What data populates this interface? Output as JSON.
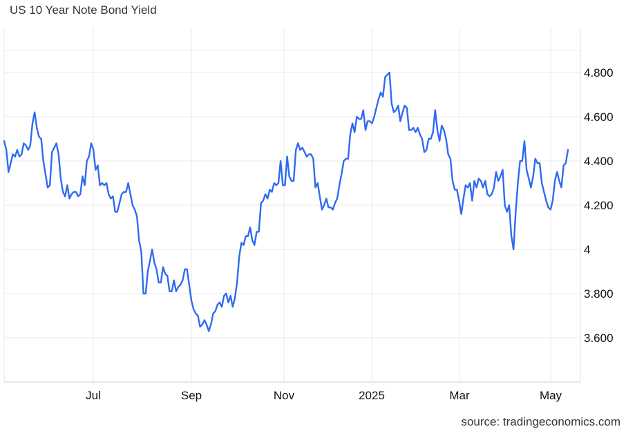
{
  "title": "US 10 Year Note Bond Yield",
  "source": "source: tradingeconomics.com",
  "colors": {
    "line": "#2f6bef",
    "grid": "#e8e8e8",
    "axis": "#cccccc"
  },
  "chart_data": {
    "type": "line",
    "title": "US 10 Year Note Bond Yield",
    "xlabel": "",
    "ylabel": "",
    "ylim": [
      3.42,
      4.98
    ],
    "grid": true,
    "x_ticks": [
      "Jul",
      "Sep",
      "Nov",
      "2025",
      "Mar",
      "May"
    ],
    "y_ticks": [
      {
        "value": 4.8,
        "label": "4.800"
      },
      {
        "value": 4.6,
        "label": "4.600"
      },
      {
        "value": 4.4,
        "label": "4.400"
      },
      {
        "value": 4.2,
        "label": "4.200"
      },
      {
        "value": 4.0,
        "label": "4"
      },
      {
        "value": 3.8,
        "label": "3.800"
      },
      {
        "value": 3.6,
        "label": "3.600"
      }
    ],
    "x_start": "2024-05-09",
    "x_end": "2025-05-09",
    "series": [
      {
        "values": [
          4.49,
          4.45,
          4.35,
          4.39,
          4.43,
          4.42,
          4.45,
          4.42,
          4.43,
          4.48,
          4.47,
          4.45,
          4.47,
          4.57,
          4.62,
          4.55,
          4.51,
          4.5,
          4.4,
          4.34,
          4.28,
          4.29,
          4.44,
          4.46,
          4.48,
          4.43,
          4.32,
          4.26,
          4.24,
          4.29,
          4.23,
          4.25,
          4.26,
          4.26,
          4.24,
          4.25,
          4.33,
          4.29,
          4.4,
          4.42,
          4.48,
          4.45,
          4.36,
          4.38,
          4.29,
          4.3,
          4.29,
          4.3,
          4.25,
          4.23,
          4.24,
          4.17,
          4.17,
          4.21,
          4.25,
          4.26,
          4.26,
          4.3,
          4.25,
          4.2,
          4.18,
          4.15,
          4.04,
          3.99,
          3.8,
          3.8,
          3.9,
          3.95,
          4.0,
          3.94,
          3.91,
          3.85,
          3.85,
          3.92,
          3.89,
          3.88,
          3.81,
          3.81,
          3.86,
          3.81,
          3.83,
          3.84,
          3.86,
          3.91,
          3.91,
          3.84,
          3.77,
          3.73,
          3.71,
          3.7,
          3.65,
          3.66,
          3.68,
          3.66,
          3.63,
          3.66,
          3.71,
          3.72,
          3.75,
          3.76,
          3.74,
          3.79,
          3.8,
          3.76,
          3.79,
          3.74,
          3.78,
          3.85,
          3.97,
          4.03,
          4.02,
          4.06,
          4.06,
          4.1,
          4.04,
          4.02,
          4.08,
          4.08,
          4.21,
          4.22,
          4.25,
          4.23,
          4.27,
          4.26,
          4.3,
          4.29,
          4.3,
          4.4,
          4.29,
          4.29,
          4.42,
          4.33,
          4.31,
          4.31,
          4.45,
          4.48,
          4.45,
          4.46,
          4.44,
          4.42,
          4.43,
          4.43,
          4.41,
          4.28,
          4.3,
          4.24,
          4.18,
          4.2,
          4.23,
          4.19,
          4.19,
          4.18,
          4.21,
          4.23,
          4.29,
          4.34,
          4.4,
          4.41,
          4.41,
          4.52,
          4.57,
          4.53,
          4.6,
          4.59,
          4.59,
          4.63,
          4.54,
          4.58,
          4.58,
          4.57,
          4.6,
          4.64,
          4.68,
          4.71,
          4.69,
          4.78,
          4.79,
          4.8,
          4.66,
          4.62,
          4.63,
          4.65,
          4.58,
          4.62,
          4.65,
          4.64,
          4.54,
          4.54,
          4.55,
          4.53,
          4.55,
          4.52,
          4.5,
          4.44,
          4.45,
          4.5,
          4.5,
          4.53,
          4.63,
          4.54,
          4.49,
          4.56,
          4.54,
          4.5,
          4.43,
          4.41,
          4.31,
          4.27,
          4.27,
          4.22,
          4.16,
          4.23,
          4.29,
          4.28,
          4.3,
          4.22,
          4.31,
          4.28,
          4.32,
          4.31,
          4.28,
          4.31,
          4.25,
          4.24,
          4.25,
          4.28,
          4.35,
          4.31,
          4.33,
          4.36,
          4.2,
          4.17,
          4.2,
          4.06,
          4.0,
          4.17,
          4.3,
          4.4,
          4.4,
          4.49,
          4.36,
          4.32,
          4.28,
          4.33,
          4.41,
          4.39,
          4.39,
          4.3,
          4.26,
          4.22,
          4.19,
          4.18,
          4.22,
          4.31,
          4.35,
          4.31,
          4.28,
          4.38,
          4.39,
          4.45
        ]
      }
    ]
  }
}
